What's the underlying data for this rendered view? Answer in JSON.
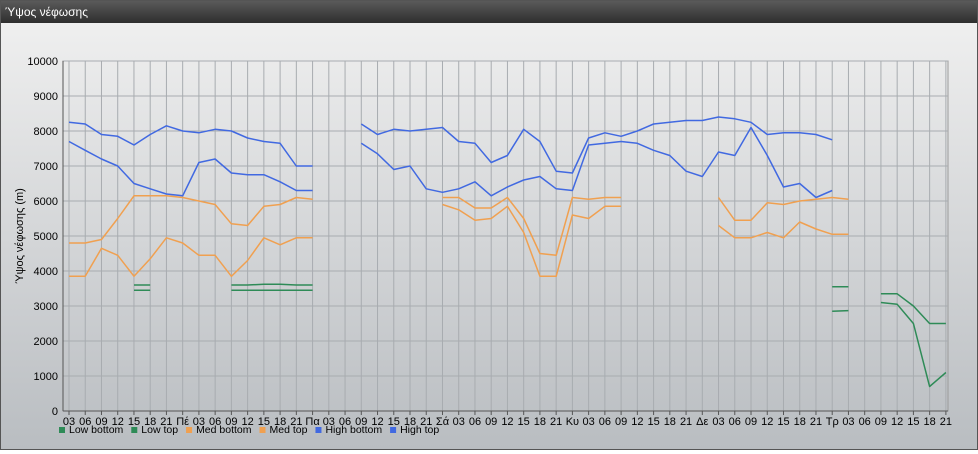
{
  "window": {
    "title": "Ύψος νέφωσης"
  },
  "chart_data": {
    "type": "line",
    "title": "",
    "ylabel": "Ύψος νέφωσης (m)",
    "xlabel": "",
    "ylim": [
      0,
      10000
    ],
    "y_ticks": [
      0,
      1000,
      2000,
      3000,
      4000,
      5000,
      6000,
      7000,
      8000,
      9000,
      10000
    ],
    "grid": true,
    "legend_position": "bottom-left",
    "x_tick_labels": [
      "03",
      "06",
      "09",
      "12",
      "15",
      "18",
      "21",
      "Πέ",
      "03",
      "06",
      "09",
      "12",
      "15",
      "18",
      "21",
      "Πα",
      "03",
      "06",
      "09",
      "12",
      "15",
      "18",
      "21",
      "Σά",
      "03",
      "06",
      "09",
      "12",
      "15",
      "18",
      "21",
      "Κυ",
      "03",
      "06",
      "09",
      "12",
      "15",
      "18",
      "21",
      "Δε",
      "03",
      "06",
      "09",
      "12",
      "15",
      "18",
      "21",
      "Τρ",
      "03",
      "06",
      "09",
      "12",
      "15",
      "18",
      "21"
    ],
    "series": [
      {
        "name": "Low bottom",
        "color": "#2e8b57",
        "values": [
          null,
          null,
          null,
          null,
          3450,
          3450,
          null,
          null,
          null,
          null,
          3450,
          3450,
          3450,
          3450,
          3450,
          3450,
          null,
          null,
          null,
          null,
          null,
          null,
          null,
          null,
          null,
          null,
          null,
          null,
          null,
          null,
          null,
          null,
          null,
          null,
          null,
          null,
          null,
          null,
          null,
          null,
          null,
          null,
          null,
          null,
          null,
          null,
          null,
          2850,
          2870,
          null,
          3100,
          3050,
          2500,
          700,
          1100,
          null
        ]
      },
      {
        "name": "Low top",
        "color": "#2e8b57",
        "values": [
          null,
          null,
          null,
          null,
          3600,
          3600,
          null,
          null,
          null,
          null,
          3600,
          3600,
          3620,
          3620,
          3600,
          3600,
          null,
          null,
          null,
          null,
          null,
          null,
          null,
          null,
          null,
          null,
          null,
          null,
          null,
          null,
          null,
          null,
          null,
          null,
          null,
          null,
          null,
          null,
          null,
          null,
          null,
          null,
          null,
          null,
          null,
          null,
          null,
          3550,
          3550,
          null,
          3350,
          3350,
          3000,
          2500,
          2500,
          null
        ]
      },
      {
        "name": "Med bottom",
        "color": "#f0a050",
        "values": [
          3850,
          3850,
          4650,
          4450,
          3850,
          4350,
          4950,
          4800,
          4450,
          4450,
          3850,
          4300,
          4950,
          4750,
          4950,
          4950,
          null,
          null,
          null,
          null,
          null,
          null,
          null,
          5900,
          5750,
          5450,
          5500,
          5850,
          5100,
          3850,
          3850,
          5600,
          5500,
          5850,
          5850,
          null,
          null,
          null,
          null,
          null,
          5300,
          4950,
          4950,
          5100,
          4950,
          5400,
          5200,
          5050,
          5050,
          null,
          null,
          null,
          null,
          null,
          null,
          null
        ]
      },
      {
        "name": "Med top",
        "color": "#f0a050",
        "values": [
          4800,
          4800,
          4900,
          5500,
          6150,
          6150,
          6150,
          6100,
          6000,
          5900,
          5350,
          5300,
          5850,
          5900,
          6100,
          6050,
          null,
          null,
          null,
          null,
          null,
          null,
          null,
          6100,
          6100,
          5800,
          5800,
          6100,
          5500,
          4500,
          4450,
          6100,
          6050,
          6100,
          6100,
          null,
          null,
          null,
          null,
          null,
          6100,
          5450,
          5450,
          5950,
          5900,
          6000,
          6050,
          6100,
          6050,
          null,
          null,
          null,
          null,
          null,
          null,
          null
        ]
      },
      {
        "name": "High bottom",
        "color": "#4169e1",
        "values": [
          7700,
          7450,
          7200,
          7000,
          6500,
          6350,
          6200,
          6150,
          7100,
          7200,
          6800,
          6750,
          6750,
          6550,
          6300,
          6300,
          null,
          null,
          7650,
          7350,
          6900,
          7000,
          6350,
          6250,
          6350,
          6550,
          6150,
          6400,
          6600,
          6700,
          6350,
          6300,
          7600,
          7650,
          7700,
          7650,
          7450,
          7300,
          6850,
          6700,
          7400,
          7300,
          8100,
          7300,
          6400,
          6500,
          6100,
          6300,
          null,
          null,
          null,
          null,
          null,
          null,
          null
        ]
      },
      {
        "name": "High top",
        "color": "#4169e1",
        "values": [
          8250,
          8200,
          7900,
          7850,
          7600,
          7900,
          8150,
          8000,
          7950,
          8050,
          8000,
          7800,
          7700,
          7650,
          7000,
          7000,
          null,
          null,
          8200,
          7900,
          8050,
          8000,
          8050,
          8100,
          7700,
          7650,
          7100,
          7300,
          8050,
          7700,
          6850,
          6800,
          7800,
          7950,
          7850,
          8000,
          8200,
          8250,
          8300,
          8300,
          8400,
          8350,
          8250,
          7900,
          7950,
          7950,
          7900,
          7750,
          null,
          null,
          null,
          null,
          null,
          null,
          null
        ]
      }
    ]
  }
}
